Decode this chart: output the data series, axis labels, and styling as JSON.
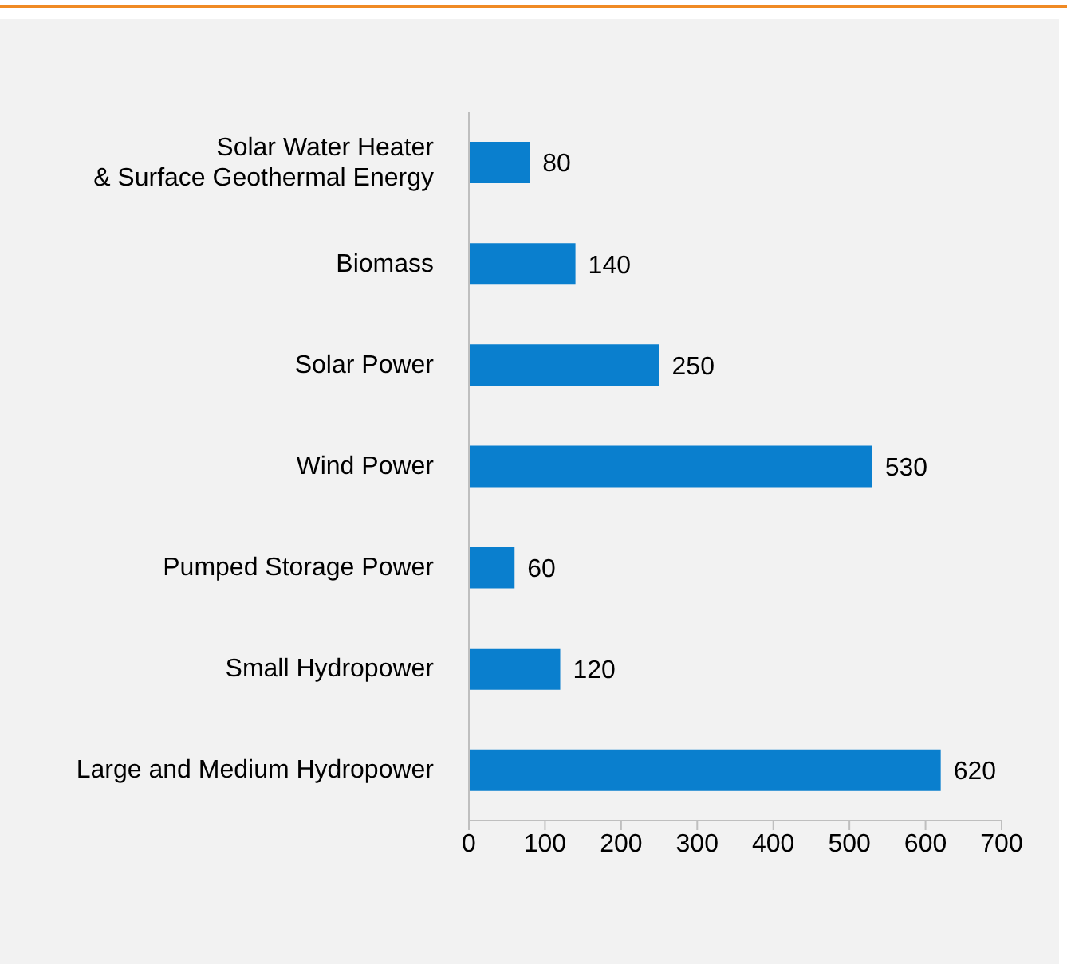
{
  "chart_data": {
    "type": "bar",
    "orientation": "horizontal",
    "categories": [
      "Solar Water Heater\n& Surface Geothermal Energy",
      "Biomass",
      "Solar Power",
      "Wind Power",
      "Pumped Storage Power",
      "Small Hydropower",
      "Large and Medium Hydropower"
    ],
    "values": [
      80,
      140,
      250,
      530,
      60,
      120,
      620
    ],
    "color": "#0a7fce",
    "xlim": [
      0,
      700
    ],
    "xticks": [
      0,
      100,
      200,
      300,
      400,
      500,
      600,
      700
    ],
    "data_labels": true,
    "grid": false,
    "legend": false
  }
}
